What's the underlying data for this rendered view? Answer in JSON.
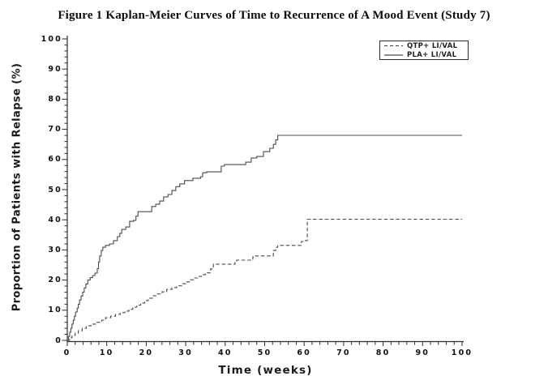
{
  "figure": {
    "title": "Figure 1  Kaplan-Meier Curves of Time to Recurrence of A Mood Event (Study 7)"
  },
  "chart_data": {
    "type": "line",
    "subtype": "kaplan-meier-step",
    "title": "Figure 1  Kaplan-Meier Curves of Time to Recurrence of A Mood Event (Study 7)",
    "xlabel": "Time (weeks)",
    "ylabel": "Proportion of Patients with Relapse (%)",
    "xlim": [
      0,
      100
    ],
    "ylim": [
      0,
      100
    ],
    "x_ticks_major": [
      0,
      10,
      20,
      30,
      40,
      50,
      60,
      70,
      80,
      90,
      100
    ],
    "y_ticks_major": [
      0,
      10,
      20,
      30,
      40,
      50,
      60,
      70,
      80,
      90,
      100
    ],
    "minor_tick_step": 2,
    "grid": false,
    "legend_position": "top-right-inside",
    "colors": {
      "curve": "#4a4a4a",
      "axis": "#2b2b2b",
      "text": "#111111"
    },
    "series": [
      {
        "name": "QTP+ LI/VAL",
        "style": "dashed",
        "final_value_pct": 40,
        "points": [
          [
            0,
            0
          ],
          [
            0.6,
            0.8
          ],
          [
            1.2,
            1.6
          ],
          [
            2,
            2.4
          ],
          [
            2.8,
            3.2
          ],
          [
            3.8,
            4
          ],
          [
            4.8,
            4.8
          ],
          [
            6,
            5.4
          ],
          [
            7.5,
            6
          ],
          [
            8.7,
            6.7
          ],
          [
            9.7,
            7.5
          ],
          [
            11,
            8
          ],
          [
            12.2,
            8.6
          ],
          [
            13.4,
            9.2
          ],
          [
            14.6,
            9.7
          ],
          [
            15.6,
            10.3
          ],
          [
            16.6,
            11
          ],
          [
            17.6,
            11.7
          ],
          [
            18.6,
            12.4
          ],
          [
            19.6,
            13.2
          ],
          [
            20.5,
            14
          ],
          [
            21.6,
            14.8
          ],
          [
            22.8,
            15.4
          ],
          [
            24,
            16.1
          ],
          [
            25.2,
            16.9
          ],
          [
            26.5,
            17.5
          ],
          [
            27.7,
            18.1
          ],
          [
            29,
            18.8
          ],
          [
            30,
            19.4
          ],
          [
            31,
            20.1
          ],
          [
            32,
            20.7
          ],
          [
            33,
            21.2
          ],
          [
            34,
            21.8
          ],
          [
            35,
            22.4
          ],
          [
            36.3,
            23.7
          ],
          [
            37,
            25.3
          ],
          [
            42.5,
            26.3
          ],
          [
            42.9,
            26.6
          ],
          [
            47,
            27.7
          ],
          [
            47.3,
            28
          ],
          [
            52.2,
            29.8
          ],
          [
            52.8,
            30.9
          ],
          [
            53.3,
            31.5
          ],
          [
            59.3,
            32.8
          ],
          [
            60,
            33.1
          ],
          [
            60.8,
            40.2
          ],
          [
            100,
            40.2
          ]
        ]
      },
      {
        "name": "PLA+ LI/VAL",
        "style": "solid",
        "final_value_pct": 68,
        "points": [
          [
            0,
            0
          ],
          [
            0.3,
            1.3
          ],
          [
            0.6,
            2.7
          ],
          [
            0.9,
            4
          ],
          [
            1.2,
            5.4
          ],
          [
            1.5,
            6.7
          ],
          [
            1.8,
            8
          ],
          [
            2.1,
            9.4
          ],
          [
            2.5,
            10.7
          ],
          [
            2.8,
            12
          ],
          [
            3.1,
            13.4
          ],
          [
            3.5,
            14.7
          ],
          [
            3.9,
            16
          ],
          [
            4.3,
            17.4
          ],
          [
            4.7,
            18.7
          ],
          [
            5.2,
            20
          ],
          [
            5.8,
            20.8
          ],
          [
            6.4,
            21.5
          ],
          [
            7,
            22.3
          ],
          [
            7.6,
            23.8
          ],
          [
            7.9,
            26
          ],
          [
            8.2,
            28
          ],
          [
            8.6,
            29.8
          ],
          [
            9,
            30.9
          ],
          [
            9.7,
            31.5
          ],
          [
            10.7,
            32
          ],
          [
            11.7,
            33.1
          ],
          [
            12.7,
            34.4
          ],
          [
            13.3,
            35.5
          ],
          [
            13.8,
            36.8
          ],
          [
            14.8,
            37.6
          ],
          [
            15.8,
            39.5
          ],
          [
            16.8,
            39.8
          ],
          [
            17.4,
            41.2
          ],
          [
            17.9,
            42.7
          ],
          [
            21.4,
            44.4
          ],
          [
            22.4,
            45.2
          ],
          [
            23.4,
            46.2
          ],
          [
            24.4,
            47.6
          ],
          [
            25.5,
            48.4
          ],
          [
            26.5,
            49.7
          ],
          [
            27.5,
            51
          ],
          [
            28.5,
            51.9
          ],
          [
            29.7,
            53
          ],
          [
            31.8,
            53.8
          ],
          [
            33.8,
            54.3
          ],
          [
            34.3,
            55.6
          ],
          [
            35.3,
            55.9
          ],
          [
            39,
            57.8
          ],
          [
            39.8,
            58.3
          ],
          [
            45.2,
            59.1
          ],
          [
            46.6,
            60.5
          ],
          [
            48,
            61
          ],
          [
            49.7,
            62.6
          ],
          [
            51.3,
            63.7
          ],
          [
            52.2,
            65
          ],
          [
            52.8,
            66.5
          ],
          [
            53.3,
            68
          ],
          [
            100,
            68
          ]
        ]
      }
    ]
  }
}
